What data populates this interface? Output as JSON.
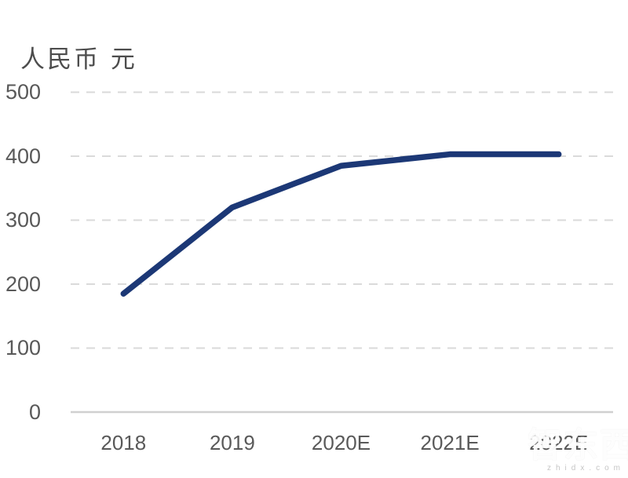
{
  "watermark": {
    "logo": "智东西",
    "site": "zhidx.com"
  },
  "chart_data": {
    "type": "line",
    "title": "人民币 元",
    "categories": [
      "2018",
      "2019",
      "2020E",
      "2021E",
      "2022E"
    ],
    "series": [
      {
        "name": "人民币 元",
        "values": [
          185,
          320,
          385,
          403,
          403
        ]
      }
    ],
    "ylim": [
      0,
      500
    ],
    "yticks": [
      0,
      100,
      200,
      300,
      400,
      500
    ],
    "grid": "horizontal-dashed",
    "legend": "none",
    "colors": {
      "line": "#1c3876",
      "gridline": "#dadada",
      "baseline": "#d0d0d0",
      "tick_label": "#595959",
      "title": "#4d4d4d"
    }
  }
}
